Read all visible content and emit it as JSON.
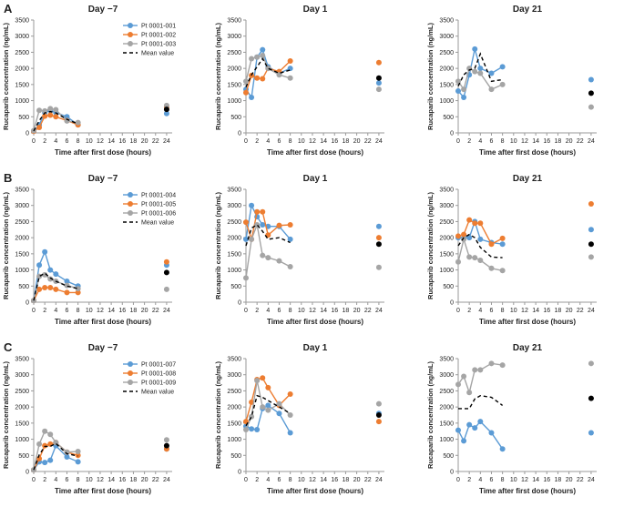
{
  "colors": {
    "blue": "#5b9bd5",
    "orange": "#ed7d31",
    "gray": "#a5a5a5",
    "mean": "#000000",
    "axis": "#9a9a9a"
  },
  "chart_data": [
    {
      "type": "line",
      "row": "A",
      "panel_label": "A",
      "title": "Day −7",
      "xlabel": "Time after first dose (hours)",
      "ylabel": "Rucaparib concentration (ng/mL)",
      "xlim": [
        0,
        25
      ],
      "ylim": [
        0,
        3500
      ],
      "xticks": [
        0,
        2,
        4,
        6,
        8,
        10,
        12,
        14,
        16,
        18,
        20,
        22,
        24
      ],
      "yticks": [
        0,
        500,
        1000,
        1500,
        2000,
        2500,
        3000,
        3500
      ],
      "legend": {
        "position": "top-right",
        "entries": [
          "Pt 0001-001",
          "Pt 0001-002",
          "Pt 0001-003",
          "Mean value"
        ]
      },
      "series": [
        {
          "name": "Pt 0001-001",
          "color": "blue",
          "x": [
            0,
            1,
            2,
            3,
            4,
            6,
            8
          ],
          "y": [
            50,
            250,
            630,
            700,
            630,
            500,
            250
          ],
          "at24": 600
        },
        {
          "name": "Pt 0001-002",
          "color": "orange",
          "x": [
            0,
            1,
            2,
            3,
            4,
            6,
            8
          ],
          "y": [
            50,
            170,
            520,
            550,
            500,
            380,
            250
          ],
          "at24": 800
        },
        {
          "name": "Pt 0001-003",
          "color": "gray",
          "x": [
            0,
            1,
            2,
            3,
            4,
            6,
            8
          ],
          "y": [
            70,
            700,
            680,
            750,
            720,
            370,
            320
          ],
          "at24": 850
        },
        {
          "name": "Mean value",
          "color": "mean",
          "dashed": true,
          "x": [
            0,
            1,
            2,
            3,
            4,
            6,
            8
          ],
          "y": [
            60,
            380,
            620,
            660,
            620,
            420,
            280
          ],
          "at24": 730
        }
      ]
    },
    {
      "type": "line",
      "row": "A",
      "title": "Day 1",
      "xlabel": "Time after first dose (hours)",
      "ylabel": "Rucaparib concentration (ng/mL)",
      "xlim": [
        0,
        25
      ],
      "ylim": [
        0,
        3500
      ],
      "xticks": [
        0,
        2,
        4,
        6,
        8,
        10,
        12,
        14,
        16,
        18,
        20,
        22,
        24
      ],
      "yticks": [
        0,
        500,
        1000,
        1500,
        2000,
        2500,
        3000,
        3500
      ],
      "series": [
        {
          "name": "Pt 0001-001",
          "color": "blue",
          "x": [
            0,
            1,
            2,
            3,
            4,
            6,
            8
          ],
          "y": [
            1350,
            1100,
            2350,
            2580,
            2050,
            1850,
            2000
          ],
          "at24": 1550
        },
        {
          "name": "Pt 0001-002",
          "color": "orange",
          "x": [
            0,
            1,
            2,
            3,
            4,
            6,
            8
          ],
          "y": [
            1250,
            1780,
            1700,
            1680,
            2000,
            1900,
            2230
          ],
          "at24": 2180
        },
        {
          "name": "Pt 0001-003",
          "color": "gray",
          "x": [
            0,
            1,
            2,
            3,
            4,
            6,
            8
          ],
          "y": [
            1600,
            2300,
            2350,
            2400,
            2000,
            1800,
            1700
          ],
          "at24": 1350
        },
        {
          "name": "Mean value",
          "color": "mean",
          "dashed": true,
          "x": [
            0,
            1,
            2,
            3,
            4,
            6,
            8
          ],
          "y": [
            1420,
            1800,
            2050,
            2300,
            2000,
            1850,
            1950
          ],
          "at24": 1700
        }
      ]
    },
    {
      "type": "line",
      "row": "A",
      "title": "Day 21",
      "xlabel": "Time after first dose (hours)",
      "ylabel": "Rucaparib concentration (ng/mL)",
      "xlim": [
        0,
        25
      ],
      "ylim": [
        0,
        3500
      ],
      "xticks": [
        0,
        2,
        4,
        6,
        8,
        10,
        12,
        14,
        16,
        18,
        20,
        22,
        24
      ],
      "yticks": [
        0,
        500,
        1000,
        1500,
        2000,
        2500,
        3000,
        3500
      ],
      "series": [
        {
          "name": "Pt 0001-001",
          "color": "blue",
          "x": [
            0,
            1,
            2,
            3,
            4,
            6,
            8
          ],
          "y": [
            1300,
            1100,
            1800,
            2600,
            2000,
            1850,
            2050
          ],
          "at24": 1650
        },
        {
          "name": "Pt 0001-003",
          "color": "gray",
          "x": [
            0,
            1,
            2,
            3,
            4,
            6,
            8
          ],
          "y": [
            1600,
            1350,
            2000,
            1900,
            1850,
            1350,
            1500
          ],
          "at24": 800
        },
        {
          "name": "Mean value",
          "color": "mean",
          "dashed": true,
          "x": [
            0,
            1,
            2,
            3,
            4,
            6,
            8
          ],
          "y": [
            1450,
            1800,
            1950,
            2000,
            2450,
            1600,
            1650
          ],
          "at24": 1230
        }
      ]
    },
    {
      "type": "line",
      "row": "B",
      "panel_label": "B",
      "title": "Day −7",
      "xlabel": "Time after first dose (hours)",
      "ylabel": "Rucaparib concentration (ng/mL)",
      "xlim": [
        0,
        25
      ],
      "ylim": [
        0,
        3500
      ],
      "xticks": [
        0,
        2,
        4,
        6,
        8,
        10,
        12,
        14,
        16,
        18,
        20,
        22,
        24
      ],
      "yticks": [
        0,
        500,
        1000,
        1500,
        2000,
        2500,
        3000,
        3500
      ],
      "legend": {
        "position": "top-right",
        "entries": [
          "Pt 0001-004",
          "Pt 0001-005",
          "Pt 0001-006",
          "Mean value"
        ]
      },
      "series": [
        {
          "name": "Pt 0001-004",
          "color": "blue",
          "x": [
            0,
            1,
            2,
            3,
            4,
            6,
            8
          ],
          "y": [
            50,
            1150,
            1560,
            1000,
            870,
            650,
            500
          ],
          "at24": 1150
        },
        {
          "name": "Pt 0001-005",
          "color": "orange",
          "x": [
            0,
            1,
            2,
            3,
            4,
            6,
            8
          ],
          "y": [
            50,
            400,
            450,
            450,
            400,
            300,
            300
          ],
          "at24": 1250
        },
        {
          "name": "Pt 0001-006",
          "color": "gray",
          "x": [
            0,
            1,
            2,
            3,
            4,
            6,
            8
          ],
          "y": [
            50,
            800,
            850,
            720,
            650,
            520,
            420
          ],
          "at24": 400
        },
        {
          "name": "Mean value",
          "color": "mean",
          "dashed": true,
          "x": [
            0,
            1,
            2,
            3,
            4,
            6,
            8
          ],
          "y": [
            50,
            800,
            900,
            750,
            650,
            500,
            420
          ],
          "at24": 920
        }
      ]
    },
    {
      "type": "line",
      "row": "B",
      "title": "Day 1",
      "xlabel": "Time after first dose (hours)",
      "ylabel": "Rucaparib concentration (ng/mL)",
      "xlim": [
        0,
        25
      ],
      "ylim": [
        0,
        3500
      ],
      "xticks": [
        0,
        2,
        4,
        6,
        8,
        10,
        12,
        14,
        16,
        18,
        20,
        22,
        24
      ],
      "yticks": [
        0,
        500,
        1000,
        1500,
        2000,
        2500,
        3000,
        3500
      ],
      "series": [
        {
          "name": "Pt 0001-004",
          "color": "blue",
          "x": [
            0,
            1,
            2,
            3,
            4,
            6,
            8
          ],
          "y": [
            1950,
            3000,
            2650,
            2400,
            2350,
            2350,
            1950
          ],
          "at24": 2350
        },
        {
          "name": "Pt 0001-005",
          "color": "orange",
          "x": [
            0,
            1,
            2,
            3,
            4,
            6,
            8
          ],
          "y": [
            2480,
            1950,
            2800,
            2800,
            2080,
            2380,
            2400
          ],
          "at24": 2000
        },
        {
          "name": "Pt 0001-006",
          "color": "gray",
          "x": [
            0,
            1,
            2,
            3,
            4,
            6,
            8
          ],
          "y": [
            750,
            1950,
            2400,
            1450,
            1380,
            1280,
            1100
          ],
          "at24": 1080
        },
        {
          "name": "Mean value",
          "color": "mean",
          "dashed": true,
          "x": [
            0,
            1,
            2,
            3,
            4,
            6,
            8
          ],
          "y": [
            1750,
            2300,
            2400,
            2200,
            1950,
            2000,
            1850
          ],
          "at24": 1800
        }
      ]
    },
    {
      "type": "line",
      "row": "B",
      "title": "Day 21",
      "xlabel": "Time after first dose (hours)",
      "ylabel": "Rucaparib concentration (ng/mL)",
      "xlim": [
        0,
        25
      ],
      "ylim": [
        0,
        3500
      ],
      "xticks": [
        0,
        2,
        4,
        6,
        8,
        10,
        12,
        14,
        16,
        18,
        20,
        22,
        24
      ],
      "yticks": [
        0,
        500,
        1000,
        1500,
        2000,
        2500,
        3000,
        3500
      ],
      "series": [
        {
          "name": "Pt 0001-004",
          "color": "blue",
          "x": [
            0,
            1,
            2,
            3,
            4,
            6,
            8
          ],
          "y": [
            2000,
            2000,
            2000,
            2500,
            1950,
            1850,
            1800
          ],
          "at24": 2250
        },
        {
          "name": "Pt 0001-005",
          "color": "orange",
          "x": [
            0,
            1,
            2,
            3,
            4,
            6,
            8
          ],
          "y": [
            2050,
            2100,
            2550,
            2450,
            2450,
            1800,
            1980
          ],
          "at24": 3050
        },
        {
          "name": "Pt 0001-006",
          "color": "gray",
          "x": [
            0,
            1,
            2,
            3,
            4,
            6,
            8
          ],
          "y": [
            1250,
            1950,
            1400,
            1380,
            1300,
            1050,
            980
          ],
          "at24": 1400
        },
        {
          "name": "Mean value",
          "color": "mean",
          "dashed": true,
          "x": [
            0,
            1,
            2,
            3,
            4,
            6,
            8
          ],
          "y": [
            1750,
            2000,
            2100,
            2000,
            1700,
            1400,
            1380
          ],
          "at24": 1800
        }
      ]
    },
    {
      "type": "line",
      "row": "C",
      "panel_label": "C",
      "title": "Day −7",
      "xlabel": "Time after first dose (hours)",
      "ylabel": "Rucaparib concentration (ng/mL)",
      "xlim": [
        0,
        25
      ],
      "ylim": [
        0,
        3500
      ],
      "xticks": [
        0,
        2,
        4,
        6,
        8,
        10,
        12,
        14,
        16,
        18,
        20,
        22,
        24
      ],
      "yticks": [
        0,
        500,
        1000,
        1500,
        2000,
        2500,
        3000,
        3500
      ],
      "legend": {
        "position": "top-right",
        "entries": [
          "Pt 0001-007",
          "Pt 0001-008",
          "Pt 0001-009",
          "Mean value"
        ]
      },
      "series": [
        {
          "name": "Pt 0001-007",
          "color": "blue",
          "x": [
            0,
            1,
            2,
            3,
            4,
            6,
            8
          ],
          "y": [
            50,
            300,
            280,
            350,
            800,
            450,
            300
          ],
          "at24": 700
        },
        {
          "name": "Pt 0001-008",
          "color": "orange",
          "x": [
            0,
            1,
            2,
            3,
            4,
            6,
            8
          ],
          "y": [
            50,
            400,
            800,
            850,
            900,
            600,
            500
          ],
          "at24": 700
        },
        {
          "name": "Pt 0001-009",
          "color": "gray",
          "x": [
            0,
            1,
            2,
            3,
            4,
            6,
            8
          ],
          "y": [
            50,
            850,
            1250,
            1150,
            900,
            600,
            620
          ],
          "at24": 980
        },
        {
          "name": "Mean value",
          "color": "mean",
          "dashed": true,
          "x": [
            0,
            1,
            2,
            3,
            4,
            6,
            8
          ],
          "y": [
            50,
            520,
            780,
            780,
            870,
            550,
            480
          ],
          "at24": 800
        }
      ]
    },
    {
      "type": "line",
      "row": "C",
      "title": "Day 1",
      "xlabel": "Time after first dose (hours)",
      "ylabel": "Rucaparib concentration (ng/mL)",
      "xlim": [
        0,
        25
      ],
      "ylim": [
        0,
        3500
      ],
      "xticks": [
        0,
        2,
        4,
        6,
        8,
        10,
        12,
        14,
        16,
        18,
        20,
        22,
        24
      ],
      "yticks": [
        0,
        500,
        1000,
        1500,
        2000,
        2500,
        3000,
        3500
      ],
      "series": [
        {
          "name": "Pt 0001-007",
          "color": "blue",
          "x": [
            0,
            1,
            2,
            3,
            4,
            6,
            8
          ],
          "y": [
            1400,
            1320,
            1300,
            1950,
            2050,
            1800,
            1200
          ],
          "at24": 1800
        },
        {
          "name": "Pt 0001-008",
          "color": "orange",
          "x": [
            0,
            1,
            2,
            3,
            4,
            6,
            8
          ],
          "y": [
            1550,
            2150,
            2850,
            2900,
            2600,
            2050,
            2400
          ],
          "at24": 1550
        },
        {
          "name": "Pt 0001-009",
          "color": "gray",
          "x": [
            0,
            1,
            2,
            3,
            4,
            6,
            8
          ],
          "y": [
            1300,
            1700,
            2820,
            2000,
            1900,
            2100,
            1750
          ],
          "at24": 2100
        },
        {
          "name": "Mean value",
          "color": "mean",
          "dashed": true,
          "x": [
            0,
            1,
            2,
            3,
            4,
            6,
            8
          ],
          "y": [
            1420,
            1700,
            2350,
            2300,
            2200,
            2000,
            1800
          ],
          "at24": 1750
        }
      ]
    },
    {
      "type": "line",
      "row": "C",
      "title": "Day 21",
      "xlabel": "Time after first dose (hours)",
      "ylabel": "Rucaparib concentration (ng/mL)",
      "xlim": [
        0,
        25
      ],
      "ylim": [
        0,
        3500
      ],
      "xticks": [
        0,
        2,
        4,
        6,
        8,
        10,
        12,
        14,
        16,
        18,
        20,
        22,
        24
      ],
      "yticks": [
        0,
        500,
        1000,
        1500,
        2000,
        2500,
        3000,
        3500
      ],
      "series": [
        {
          "name": "Pt 0001-007",
          "color": "blue",
          "x": [
            0,
            1,
            2,
            3,
            4,
            6,
            8
          ],
          "y": [
            1280,
            950,
            1450,
            1350,
            1550,
            1200,
            700
          ],
          "at24": 1200
        },
        {
          "name": "Pt 0001-009",
          "color": "gray",
          "x": [
            0,
            1,
            2,
            3,
            4,
            6,
            8
          ],
          "y": [
            2700,
            2950,
            2450,
            3150,
            3150,
            3350,
            3300
          ],
          "at24": 3350
        },
        {
          "name": "Mean value",
          "color": "mean",
          "dashed": true,
          "x": [
            0,
            1,
            2,
            3,
            4,
            6,
            8
          ],
          "y": [
            1950,
            1950,
            1950,
            2250,
            2350,
            2300,
            2050
          ],
          "at24": 2270
        }
      ]
    }
  ]
}
